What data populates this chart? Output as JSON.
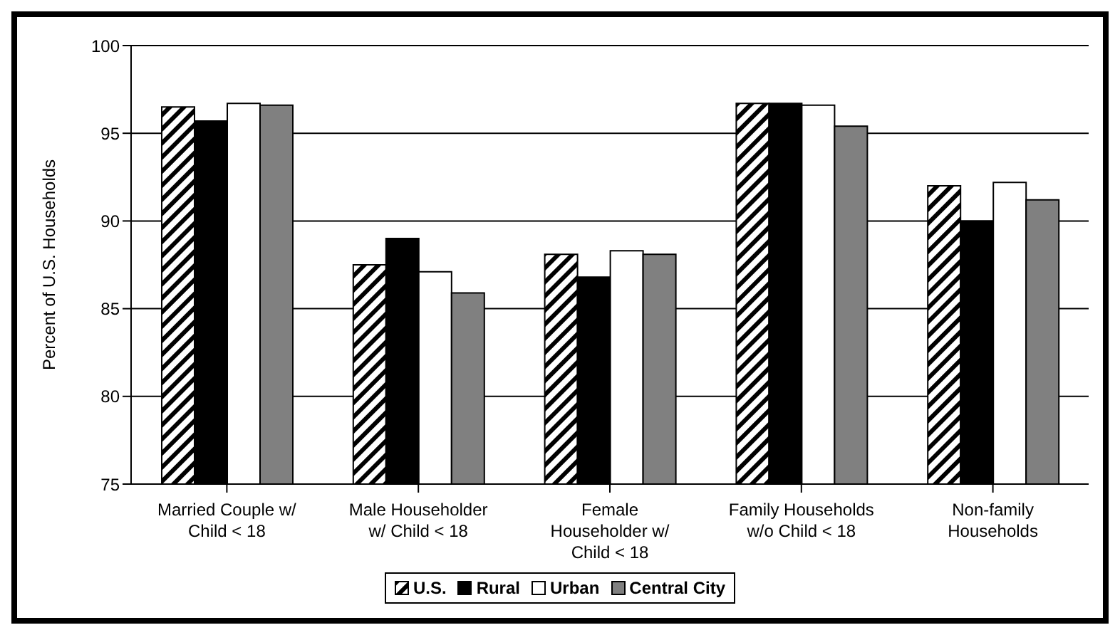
{
  "chart_data": {
    "type": "bar",
    "ylabel": "Percent of U.S. Households",
    "categories": [
      "Married Couple w/\nChild < 18",
      "Male Householder\nw/ Child < 18",
      "Female\nHouseholder w/\nChild < 18",
      "Family Households\nw/o Child < 18",
      "Non-family\nHouseholds"
    ],
    "series": [
      {
        "name": "U.S.",
        "color": "#000000",
        "values": [
          96.5,
          87.5,
          88.1,
          96.7,
          92.0
        ]
      },
      {
        "name": "Rural",
        "color": "#000000",
        "values": [
          95.7,
          89.0,
          86.8,
          96.7,
          90.0
        ]
      },
      {
        "name": "Urban",
        "color": "#ffffff",
        "values": [
          96.7,
          87.1,
          88.3,
          96.6,
          92.2
        ]
      },
      {
        "name": "Central City",
        "color": "#808080",
        "values": [
          96.6,
          85.9,
          88.1,
          95.4,
          91.2
        ]
      }
    ],
    "ylim": [
      75,
      100
    ],
    "yticks": [
      75,
      80,
      85,
      90,
      95,
      100
    ],
    "grid": "y",
    "legend": "bottom"
  }
}
